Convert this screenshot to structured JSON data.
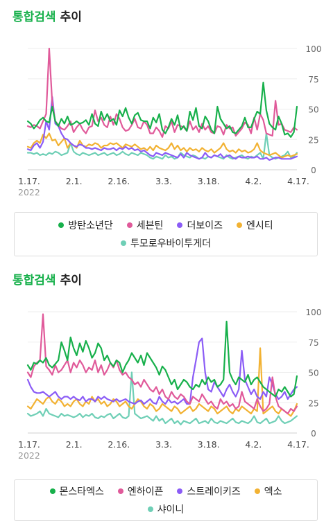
{
  "charts": [
    {
      "title_accent": "통합검색",
      "title_rest": "추이",
      "chart_data": {
        "type": "line",
        "ylim": [
          0,
          100
        ],
        "yticks": [
          0,
          25,
          50,
          75,
          100
        ],
        "x_labels": [
          "1.17.",
          "2.1.",
          "2.16.",
          "3.3.",
          "3.18.",
          "4.2.",
          "4.17."
        ],
        "year_label": "2022",
        "grid": true,
        "legend_position": "bottom",
        "series": [
          {
            "name": "방탄소년단",
            "color": "#17b04b",
            "values": [
              40,
              38,
              34,
              37,
              41,
              43,
              40,
              39,
              52,
              40,
              36,
              42,
              38,
              44,
              37,
              38,
              40,
              38,
              39,
              41,
              37,
              46,
              38,
              36,
              48,
              41,
              46,
              40,
              42,
              37,
              49,
              44,
              51,
              43,
              38,
              45,
              47,
              41,
              40,
              40,
              34,
              43,
              39,
              46,
              33,
              30,
              35,
              42,
              37,
              45,
              33,
              36,
              32,
              48,
              41,
              51,
              36,
              34,
              44,
              40,
              33,
              30,
              52,
              42,
              38,
              34,
              36,
              31,
              30,
              33,
              36,
              43,
              35,
              35,
              42,
              48,
              46,
              72,
              49,
              38,
              35,
              33,
              44,
              38,
              29,
              30,
              27,
              31,
              52
            ]
          },
          {
            "name": "세븐틴",
            "color": "#e05a9a",
            "values": [
              36,
              35,
              37,
              36,
              34,
              40,
              46,
              100,
              55,
              40,
              37,
              34,
              33,
              36,
              40,
              31,
              35,
              38,
              33,
              30,
              35,
              36,
              49,
              40,
              43,
              37,
              35,
              44,
              37,
              46,
              42,
              35,
              32,
              33,
              37,
              42,
              35,
              34,
              40,
              37,
              30,
              30,
              35,
              32,
              27,
              36,
              34,
              40,
              31,
              37,
              36,
              35,
              32,
              40,
              33,
              36,
              31,
              38,
              33,
              36,
              31,
              30,
              36,
              35,
              29,
              37,
              34,
              35,
              28,
              31,
              34,
              39,
              37,
              30,
              43,
              33,
              46,
              41,
              30,
              29,
              28,
              57,
              37,
              38,
              33,
              32,
              31,
              35,
              33
            ]
          },
          {
            "name": "더보이즈",
            "color": "#8b5cf6",
            "values": [
              17,
              16,
              20,
              22,
              18,
              23,
              40,
              33,
              60,
              38,
              36,
              30,
              26,
              25,
              22,
              20,
              19,
              21,
              20,
              18,
              18,
              17,
              18,
              17,
              16,
              18,
              17,
              17,
              18,
              16,
              18,
              17,
              19,
              17,
              18,
              16,
              17,
              15,
              16,
              14,
              12,
              11,
              14,
              13,
              12,
              14,
              13,
              12,
              11,
              10,
              13,
              10,
              14,
              12,
              11,
              10,
              9,
              10,
              14,
              11,
              10,
              12,
              11,
              13,
              10,
              11,
              12,
              10,
              9,
              11,
              10,
              10,
              11,
              10,
              10,
              11,
              9,
              9,
              10,
              8,
              9,
              10,
              10,
              9,
              9,
              9,
              9,
              10,
              11
            ]
          },
          {
            "name": "엔시티",
            "color": "#f2b233",
            "values": [
              19,
              18,
              22,
              24,
              22,
              29,
              26,
              30,
              24,
              25,
              20,
              23,
              26,
              18,
              22,
              20,
              18,
              24,
              20,
              19,
              21,
              20,
              22,
              21,
              18,
              20,
              20,
              22,
              21,
              22,
              20,
              18,
              21,
              20,
              19,
              21,
              19,
              17,
              18,
              16,
              19,
              16,
              20,
              18,
              17,
              16,
              18,
              22,
              17,
              20,
              16,
              18,
              15,
              18,
              16,
              17,
              15,
              18,
              16,
              15,
              17,
              14,
              16,
              18,
              22,
              17,
              15,
              16,
              14,
              17,
              15,
              16,
              14,
              15,
              17,
              22,
              16,
              14,
              13,
              12,
              13,
              14,
              12,
              10,
              11,
              12,
              11,
              12,
              13
            ]
          },
          {
            "name": "투모로우바이투게더",
            "color": "#6fcfb6",
            "values": [
              14,
              14,
              13,
              14,
              12,
              13,
              12,
              14,
              13,
              15,
              14,
              12,
              13,
              14,
              22,
              15,
              13,
              12,
              14,
              13,
              12,
              13,
              14,
              12,
              13,
              14,
              12,
              13,
              14,
              12,
              13,
              15,
              13,
              12,
              14,
              13,
              12,
              14,
              13,
              12,
              10,
              9,
              11,
              10,
              9,
              12,
              10,
              11,
              9,
              10,
              14,
              12,
              11,
              10,
              12,
              11,
              9,
              10,
              9,
              11,
              10,
              12,
              11,
              10,
              9,
              12,
              10,
              9,
              10,
              11,
              12,
              10,
              9,
              11,
              10,
              12,
              14,
              9,
              30,
              12,
              10,
              9,
              10,
              11,
              12,
              15,
              10,
              11,
              14
            ]
          }
        ]
      }
    },
    {
      "title_accent": "통합검색",
      "title_rest": "추이",
      "chart_data": {
        "type": "line",
        "ylim": [
          0,
          100
        ],
        "yticks": [
          0,
          25,
          50,
          75,
          100
        ],
        "x_labels": [
          "1.17.",
          "2.1.",
          "2.16.",
          "3.3.",
          "3.18.",
          "4.2.",
          "4.17."
        ],
        "year_label": "2022",
        "grid": true,
        "legend_position": "bottom",
        "series": [
          {
            "name": "몬스타엑스",
            "color": "#17b04b",
            "values": [
              56,
              52,
              58,
              57,
              60,
              58,
              62,
              56,
              54,
              57,
              60,
              75,
              68,
              60,
              79,
              70,
              64,
              74,
              67,
              76,
              70,
              62,
              66,
              74,
              70,
              60,
              64,
              58,
              55,
              60,
              58,
              50,
              56,
              60,
              66,
              62,
              58,
              64,
              56,
              66,
              62,
              58,
              54,
              48,
              55,
              52,
              46,
              40,
              44,
              36,
              40,
              44,
              42,
              38,
              36,
              40,
              38,
              44,
              40,
              46,
              42,
              44,
              38,
              40,
              44,
              92,
              50,
              44,
              40,
              46,
              44,
              42,
              48,
              40,
              44,
              46,
              42,
              38,
              36,
              34,
              32,
              30,
              36,
              34,
              38,
              34,
              30,
              32,
              47
            ]
          },
          {
            "name": "엔하이픈",
            "color": "#e05a9a",
            "values": [
              50,
              46,
              55,
              58,
              60,
              98,
              55,
              52,
              48,
              56,
              50,
              52,
              56,
              60,
              50,
              58,
              54,
              60,
              56,
              50,
              54,
              52,
              60,
              50,
              56,
              48,
              52,
              58,
              54,
              60,
              52,
              48,
              50,
              46,
              44,
              40,
              42,
              38,
              44,
              40,
              36,
              34,
              38,
              32,
              36,
              30,
              28,
              34,
              30,
              28,
              32,
              30,
              26,
              24,
              30,
              28,
              26,
              32,
              28,
              24,
              26,
              22,
              20,
              28,
              24,
              26,
              22,
              24,
              20,
              22,
              34,
              26,
              24,
              22,
              20,
              28,
              22,
              18,
              20,
              24,
              46,
              30,
              22,
              20,
              18,
              16,
              20,
              18,
              22
            ]
          },
          {
            "name": "스트레이키즈",
            "color": "#8b5cf6",
            "values": [
              44,
              38,
              34,
              33,
              33,
              34,
              32,
              30,
              32,
              34,
              30,
              28,
              30,
              30,
              28,
              30,
              28,
              27,
              30,
              26,
              28,
              28,
              26,
              30,
              28,
              30,
              28,
              27,
              26,
              28,
              26,
              27,
              28,
              26,
              25,
              24,
              26,
              27,
              24,
              26,
              28,
              25,
              24,
              30,
              26,
              24,
              28,
              25,
              26,
              24,
              26,
              28,
              24,
              24,
              46,
              60,
              75,
              78,
              50,
              36,
              34,
              42,
              38,
              34,
              30,
              36,
              40,
              34,
              30,
              36,
              68,
              44,
              38,
              32,
              36,
              30,
              28,
              34,
              30,
              46,
              40,
              32,
              28,
              30,
              34,
              28,
              32,
              36,
              38
            ]
          },
          {
            "name": "엑소",
            "color": "#f2b233",
            "values": [
              22,
              20,
              24,
              28,
              26,
              24,
              28,
              30,
              26,
              24,
              28,
              26,
              22,
              24,
              22,
              26,
              28,
              24,
              22,
              26,
              24,
              30,
              26,
              28,
              24,
              26,
              22,
              24,
              28,
              26,
              22,
              24,
              26,
              22,
              20,
              24,
              28,
              26,
              22,
              20,
              24,
              22,
              18,
              20,
              24,
              22,
              20,
              18,
              22,
              20,
              16,
              18,
              20,
              22,
              18,
              20,
              24,
              22,
              20,
              18,
              22,
              20,
              16,
              18,
              20,
              22,
              18,
              16,
              20,
              18,
              22,
              20,
              18,
              16,
              20,
              18,
              70,
              16,
              18,
              20,
              22,
              18,
              16,
              20,
              18,
              16,
              14,
              18,
              24
            ]
          },
          {
            "name": "샤이니",
            "color": "#6fcfb6",
            "values": [
              16,
              14,
              15,
              16,
              18,
              14,
              20,
              16,
              15,
              14,
              13,
              16,
              14,
              15,
              14,
              13,
              14,
              16,
              13,
              15,
              14,
              16,
              13,
              12,
              14,
              13,
              15,
              16,
              12,
              14,
              16,
              13,
              12,
              14,
              50,
              16,
              14,
              12,
              13,
              14,
              12,
              10,
              14,
              10,
              12,
              8,
              10,
              12,
              8,
              10,
              7,
              10,
              9,
              8,
              10,
              12,
              8,
              9,
              10,
              8,
              12,
              9,
              8,
              10,
              9,
              8,
              10,
              12,
              9,
              8,
              10,
              9,
              8,
              10,
              14,
              9,
              8,
              10,
              12,
              8,
              9,
              10,
              14,
              10,
              8,
              9,
              10,
              12,
              14
            ]
          }
        ]
      }
    }
  ]
}
